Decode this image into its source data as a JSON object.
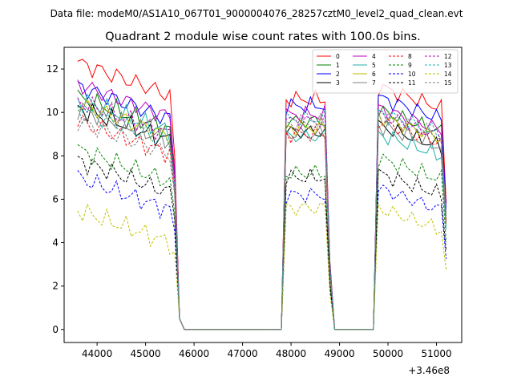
{
  "suptitle": "Data file: modeM0/AS1A10_067T01_9000004076_28257cztM0_level2_quad_clean.evt",
  "chart_data": {
    "type": "line",
    "title": "Quadrant 2 module wise count rates with 100.0s bins.",
    "xlabel": "",
    "ylabel": "",
    "x_offset_label": "+3.46e8",
    "xlim": [
      43320,
      51520
    ],
    "ylim": [
      -0.6,
      13.0
    ],
    "xticks": [
      44000,
      45000,
      46000,
      47000,
      48000,
      49000,
      50000,
      51000
    ],
    "xtick_labels": [
      "44000",
      "45000",
      "46000",
      "47000",
      "48000",
      "49000",
      "50000",
      "51000"
    ],
    "yticks": [
      0,
      2,
      4,
      6,
      8,
      10,
      12
    ],
    "ytick_labels": [
      "0",
      "2",
      "4",
      "6",
      "8",
      "10",
      "12"
    ],
    "legend": {
      "position": "upper right",
      "columns": 4,
      "entries": [
        "0",
        "1",
        "2",
        "3",
        "4",
        "5",
        "6",
        "7",
        "8",
        "9",
        "10",
        "11",
        "12",
        "13",
        "14",
        "15"
      ]
    },
    "series": [
      {
        "name": "0",
        "color": "#ff0000",
        "dash": "solid",
        "levels": [
          12.3,
          10.6,
          10.6
        ]
      },
      {
        "name": "1",
        "color": "#008000",
        "dash": "solid",
        "levels": [
          10.7,
          9.6,
          9.5
        ]
      },
      {
        "name": "2",
        "color": "#0000ff",
        "dash": "solid",
        "levels": [
          11.2,
          10.3,
          10.1
        ]
      },
      {
        "name": "3",
        "color": "#000000",
        "dash": "solid",
        "levels": [
          10.2,
          9.1,
          8.8
        ]
      },
      {
        "name": "4",
        "color": "#bf00bf",
        "dash": "solid",
        "levels": [
          11.3,
          9.9,
          9.6
        ]
      },
      {
        "name": "5",
        "color": "#20b2aa",
        "dash": "solid",
        "levels": [
          10.6,
          8.9,
          8.4
        ]
      },
      {
        "name": "6",
        "color": "#bfbf00",
        "dash": "solid",
        "levels": [
          10.4,
          9.3,
          9.2
        ]
      },
      {
        "name": "7",
        "color": "#808080",
        "dash": "solid",
        "levels": [
          10.2,
          9.0,
          8.8
        ]
      },
      {
        "name": "8",
        "color": "#ff0000",
        "dash": "dashed",
        "levels": [
          9.6,
          9.0,
          9.0
        ]
      },
      {
        "name": "9",
        "color": "#008000",
        "dash": "dashed",
        "levels": [
          8.3,
          7.2,
          7.3
        ]
      },
      {
        "name": "10",
        "color": "#0000ff",
        "dash": "dashed",
        "levels": [
          7.0,
          6.2,
          5.9
        ]
      },
      {
        "name": "11",
        "color": "#000000",
        "dash": "dashed",
        "levels": [
          7.8,
          7.0,
          6.6
        ]
      },
      {
        "name": "12",
        "color": "#bf00bf",
        "dash": "dashed",
        "levels": [
          10.5,
          9.6,
          9.3
        ]
      },
      {
        "name": "13",
        "color": "#20b2aa",
        "dash": "dashed",
        "levels": [
          10.1,
          9.7,
          9.4
        ]
      },
      {
        "name": "14",
        "color": "#bfbf00",
        "dash": "dashed",
        "levels": [
          5.5,
          5.6,
          5.0
        ]
      },
      {
        "name": "15",
        "color": "#808080",
        "dash": "dashed",
        "levels": [
          9.6,
          9.5,
          9.3
        ]
      }
    ]
  }
}
